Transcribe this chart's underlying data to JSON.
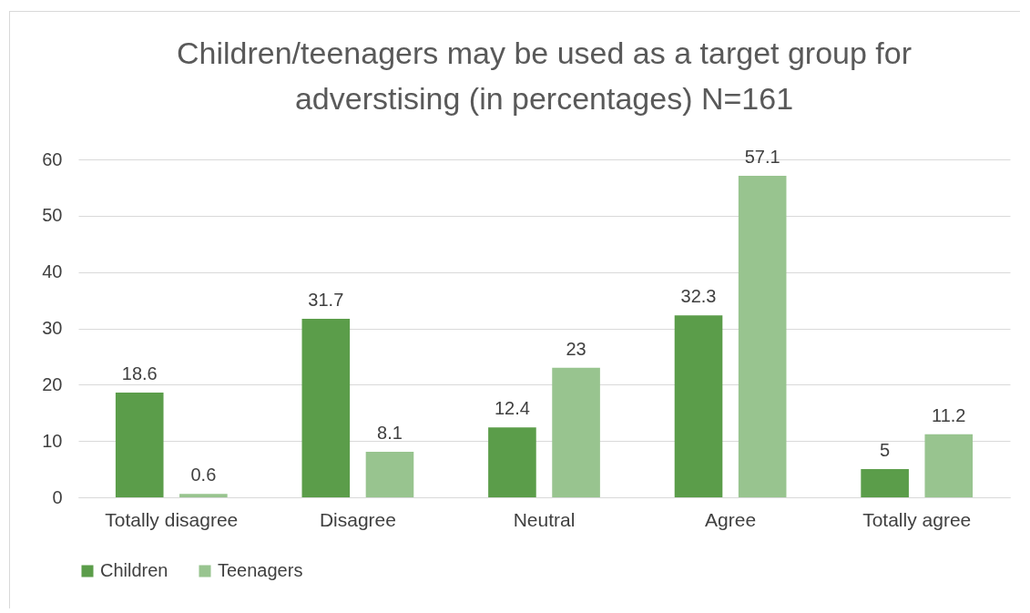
{
  "chart_data": {
    "type": "bar",
    "title": "Children/teenagers may be used as a target group for adverstising (in percentages) N=161",
    "categories": [
      "Totally disagree",
      "Disagree",
      "Neutral",
      "Agree",
      "Totally agree"
    ],
    "series": [
      {
        "name": "Children",
        "color": "#5b9d4a",
        "values": [
          18.6,
          31.7,
          12.4,
          32.3,
          5
        ]
      },
      {
        "name": "Teenagers",
        "color": "#98c48f",
        "values": [
          0.6,
          8.1,
          23,
          57.1,
          11.2
        ]
      }
    ],
    "ylim": [
      0,
      60
    ],
    "yticks": [
      0,
      10,
      20,
      30,
      40,
      50,
      60
    ],
    "grid": "y",
    "legend": "bottom",
    "data_labels": true
  }
}
